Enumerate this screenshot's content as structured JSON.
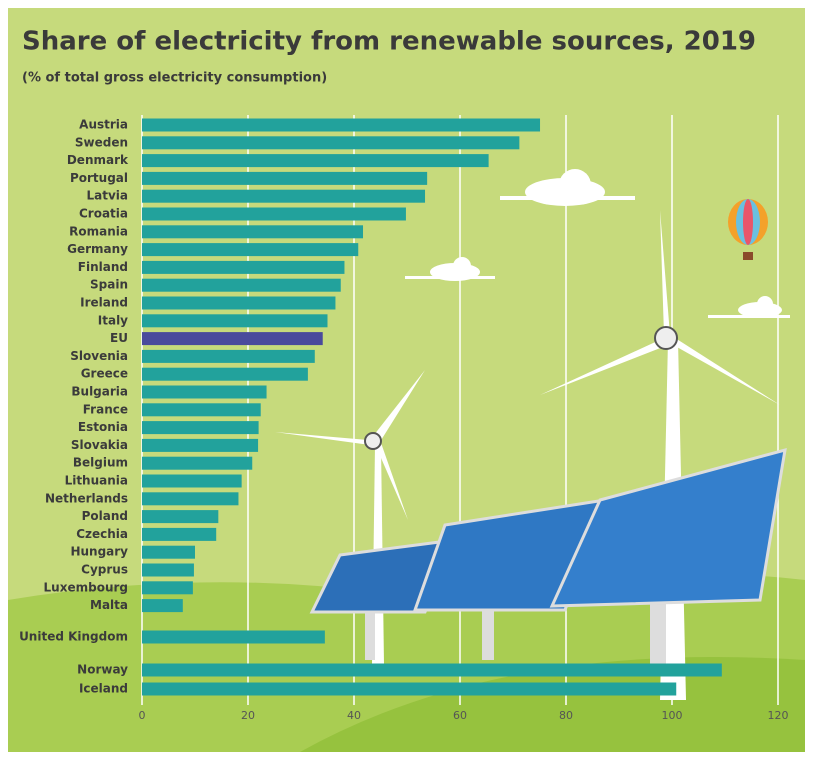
{
  "chart_data": {
    "type": "bar",
    "orientation": "horizontal",
    "title": "Share of electricity from renewable sources, 2019",
    "subtitle": "(% of total gross electricity consumption)",
    "categories": [
      "Austria",
      "Sweden",
      "Denmark",
      "Portugal",
      "Latvia",
      "Croatia",
      "Romania",
      "Germany",
      "Finland",
      "Spain",
      "Ireland",
      "Italy",
      "EU",
      "Slovenia",
      "Greece",
      "Bulgaria",
      "France",
      "Estonia",
      "Slovakia",
      "Belgium",
      "Lithuania",
      "Netherlands",
      "Poland",
      "Czechia",
      "Hungary",
      "Cyprus",
      "Luxembourg",
      "Malta",
      "United Kingdom",
      "Norway",
      "Iceland"
    ],
    "values": [
      75.1,
      71.2,
      65.4,
      53.8,
      53.4,
      49.8,
      41.7,
      40.8,
      38.2,
      37.5,
      36.5,
      35.0,
      34.1,
      32.6,
      31.3,
      23.5,
      22.4,
      22.0,
      21.9,
      20.8,
      18.8,
      18.2,
      14.4,
      14.0,
      10.0,
      9.8,
      9.6,
      7.7,
      34.5,
      109.4,
      100.8
    ],
    "colors": [
      "#22a29c",
      "#22a29c",
      "#22a29c",
      "#22a29c",
      "#22a29c",
      "#22a29c",
      "#22a29c",
      "#22a29c",
      "#22a29c",
      "#22a29c",
      "#22a29c",
      "#22a29c",
      "#4a4a9c",
      "#22a29c",
      "#22a29c",
      "#22a29c",
      "#22a29c",
      "#22a29c",
      "#22a29c",
      "#22a29c",
      "#22a29c",
      "#22a29c",
      "#22a29c",
      "#22a29c",
      "#22a29c",
      "#22a29c",
      "#22a29c",
      "#22a29c",
      "#22a29c",
      "#22a29c",
      "#22a29c"
    ],
    "xlim": [
      0,
      120
    ],
    "xticks": [
      0,
      20,
      40,
      60,
      80,
      100,
      120
    ],
    "grid": true
  }
}
